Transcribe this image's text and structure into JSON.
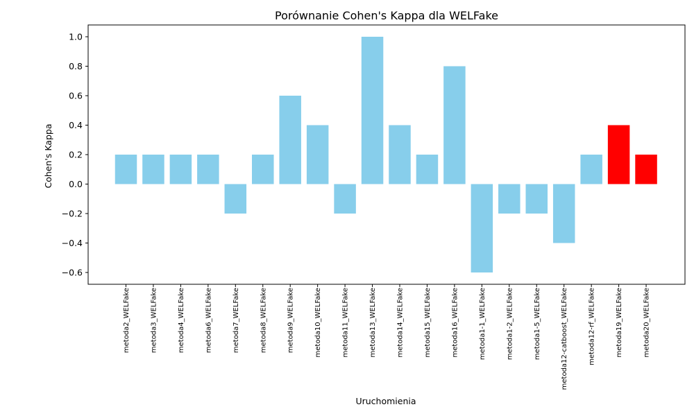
{
  "chart_data": {
    "type": "bar",
    "title": "Porównanie Cohen's Kappa dla WELFake",
    "xlabel": "Uruchomienia",
    "ylabel": "Cohen's Kappa",
    "categories": [
      "metoda2_WELFake",
      "metoda3_WELFake",
      "metoda4_WELFake",
      "metoda6_WELFake",
      "metoda7_WELFake",
      "metoda8_WELFake",
      "metoda9_WELFake",
      "metoda10_WELFake",
      "metoda11_WELFake",
      "metoda13_WELFake",
      "metoda14_WELFake",
      "metoda15_WELFake",
      "metoda16_WELFake",
      "metoda1-1_WELFake",
      "metoda1-2_WELFake",
      "metoda1-5_WELFake",
      "metoda12-catboost_WELFake",
      "metoda12-rf_WELFake",
      "metoda19_WELFake",
      "metoda20_WELFake"
    ],
    "values": [
      0.2,
      0.2,
      0.2,
      0.2,
      -0.2,
      0.2,
      0.6,
      0.4,
      -0.2,
      1.0,
      0.4,
      0.2,
      0.8,
      -0.6,
      -0.2,
      -0.2,
      -0.4,
      0.2,
      0.4,
      0.2
    ],
    "highlighted": [
      false,
      false,
      false,
      false,
      false,
      false,
      false,
      false,
      false,
      false,
      false,
      false,
      false,
      false,
      false,
      false,
      false,
      false,
      true,
      true
    ],
    "colors": {
      "default": "#87ceeb",
      "highlight": "#ff0000"
    },
    "ylim": [
      -0.68,
      1.08
    ],
    "yticks": [
      -0.6,
      -0.4,
      -0.2,
      0.0,
      0.2,
      0.4,
      0.6,
      0.8,
      1.0
    ],
    "ytick_labels": [
      "−0.6",
      "−0.4",
      "−0.2",
      "0.0",
      "0.2",
      "0.4",
      "0.6",
      "0.8",
      "1.0"
    ],
    "grid": false,
    "legend": "none"
  }
}
